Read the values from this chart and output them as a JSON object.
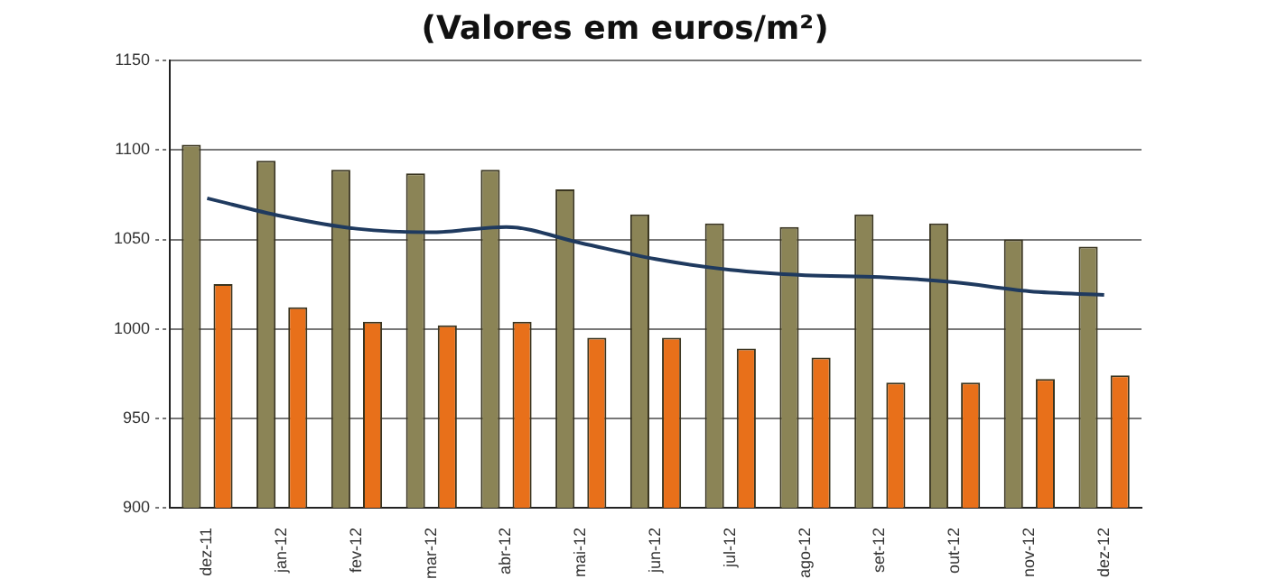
{
  "chart_data": {
    "type": "bar",
    "title": "(Valores em euros/m²)",
    "categories": [
      "dez-11",
      "jan-12",
      "fev-12",
      "mar-12",
      "abr-12",
      "mai-12",
      "jun-12",
      "jul-12",
      "ago-12",
      "set-12",
      "out-12",
      "nov-12",
      "dez-12"
    ],
    "series": [
      {
        "type": "line",
        "color": "#1f3a5f",
        "values": [
          1073,
          1063,
          1056,
          1054,
          1057,
          1048,
          1039,
          1033,
          1030,
          1029,
          1026,
          1021,
          1019
        ]
      },
      {
        "color": "#8b8456",
        "values": [
          1103,
          1094,
          1089,
          1087,
          1089,
          1078,
          1064,
          1059,
          1057,
          1064,
          1059,
          1050,
          1046
        ]
      },
      {
        "color": "#e8701a",
        "values": [
          1025,
          1012,
          1004,
          1002,
          1004,
          995,
          995,
          989,
          984,
          970,
          970,
          972,
          974
        ]
      }
    ],
    "ylim": [
      900,
      1150
    ],
    "yticks": [
      900,
      950,
      1000,
      1050,
      1100,
      1150
    ],
    "grid": "y",
    "legend": false,
    "marker": "none",
    "line_style": "solid"
  }
}
